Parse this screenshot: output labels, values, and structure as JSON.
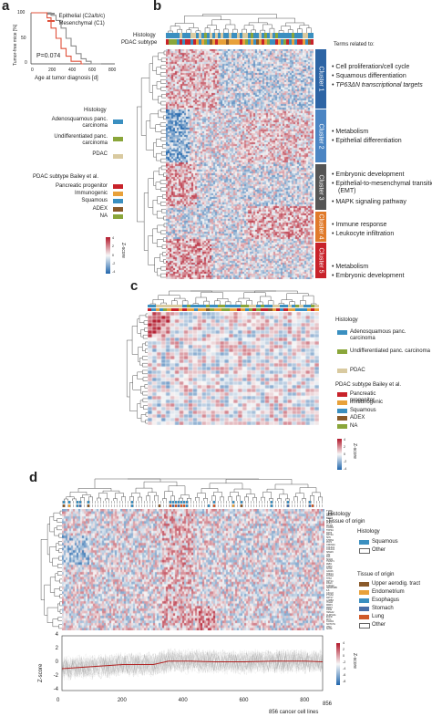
{
  "panel_a": {
    "label": "a",
    "legend": [
      "Epithelial (C2a/b/c)",
      "Mesenchymal (C1)"
    ],
    "pvalue": "P=0.074",
    "ylabel": "Tumor-free mice [%]",
    "xlabel": "Age at tumor diagnosis [d]",
    "yticks": [
      "100",
      "50",
      "0"
    ],
    "xticks": [
      "0",
      "200",
      "400",
      "600",
      "800"
    ]
  },
  "panel_b": {
    "label": "b",
    "track_labels": [
      "Histology",
      "PDAC subtype"
    ],
    "terms_header": "Terms related  to:",
    "clusters": [
      {
        "name": "Cluster 1",
        "color": "#2d64a4",
        "terms": [
          "Cell proliferation/cell cycle",
          "Squamous differentiation",
          "TP63ΔN transcriptional targets"
        ]
      },
      {
        "name": "Cluster 2",
        "color": "#4b85c3",
        "terms": [
          "Metabolism",
          "Epithelial differentiation"
        ]
      },
      {
        "name": "Cluster 3",
        "color": "#555555",
        "terms": [
          "Embryonic development",
          "Epithelial-to-mesenchymal transition (EMT)",
          "MAPK signaling pathway"
        ]
      },
      {
        "name": "Cluster 4",
        "color": "#e07a2a",
        "terms": [
          "Immune response",
          "Leukocyte infiltration"
        ]
      },
      {
        "name": "Cluster 5",
        "color": "#c8222a",
        "terms": [
          "Metabolism",
          "Embryonic development"
        ]
      }
    ],
    "histology_title": "Histology",
    "histology": [
      {
        "label": "Adenosquamous panc. carcinoma",
        "color": "#3a8fc0"
      },
      {
        "label": "Undifferentiated panc. carcinoma",
        "color": "#8aa63a"
      },
      {
        "label": "PDAC",
        "color": "#d9caa0"
      }
    ],
    "subtype_title": "PDAC subtype Bailey et al.",
    "subtypes": [
      {
        "label": "Pancreatic progenitor",
        "color": "#c8222a"
      },
      {
        "label": "Immunogenic",
        "color": "#e8a13a"
      },
      {
        "label": "Squamous",
        "color": "#3a8fc0"
      },
      {
        "label": "ADEX",
        "color": "#8a5a2a"
      },
      {
        "label": "NA",
        "color": "#8aa63a"
      }
    ],
    "zscore_label": "Z-score",
    "zscore_ticks": [
      "4",
      "2",
      "0",
      "-2",
      "-4"
    ]
  },
  "panel_c": {
    "label": "c",
    "histology_title": "Histology",
    "histology": [
      {
        "label": "Adenosquamous panc. carcinoma",
        "color": "#3a8fc0"
      },
      {
        "label": "Undifferentiated panc. carcinoma",
        "color": "#8aa63a"
      },
      {
        "label": "PDAC",
        "color": "#d9caa0"
      }
    ],
    "subtype_title": "PDAC subtype Bailey et al.",
    "subtypes": [
      {
        "label": "Pancreatic progenitor",
        "color": "#c8222a"
      },
      {
        "label": "Immunogenic",
        "color": "#e8a13a"
      },
      {
        "label": "Squamous",
        "color": "#3a8fc0"
      },
      {
        "label": "ADEX",
        "color": "#8a5a2a"
      },
      {
        "label": "NA",
        "color": "#8aa63a"
      }
    ],
    "zscore_label": "Z-score",
    "zscore_ticks": [
      "4",
      "2",
      "0",
      "-2",
      "-4"
    ]
  },
  "panel_d": {
    "label": "d",
    "track_labels": [
      "Histology",
      "Tissue of origin"
    ],
    "histology_title": "Histology",
    "histology": [
      {
        "label": "Squamous",
        "color": "#3a8fc0",
        "outline": false
      },
      {
        "label": "Other",
        "color": "#ffffff",
        "outline": true
      }
    ],
    "tissue_title": "Tissue of origin",
    "tissues": [
      {
        "label": "Upper aerodig. tract",
        "color": "#8a5a2a",
        "outline": false
      },
      {
        "label": "Endometrium",
        "color": "#e8a13a",
        "outline": false
      },
      {
        "label": "Esophagus",
        "color": "#3a8fc0",
        "outline": false
      },
      {
        "label": "Stomach",
        "color": "#4b6fa8",
        "outline": false
      },
      {
        "label": "Lung",
        "color": "#d05a2a",
        "outline": false
      },
      {
        "label": "Other",
        "color": "#ffffff",
        "outline": true
      }
    ],
    "gene_labels": [
      "TYMS",
      "CDC20",
      "MKI67",
      "BIRC5",
      "BUB1",
      "PLK1",
      "MCM2",
      "CCNB1",
      "TOP2A",
      "KRT5",
      "KRT6A",
      "SFN",
      "STMN1",
      "PKP1",
      "CDKN2A",
      "COL3A1",
      "COL1A1",
      "SPARC",
      "VIM",
      "FN1",
      "SNAI2",
      "TWIST1",
      "ZEB1",
      "CDH2",
      "SOX2",
      "GATA6",
      "HNF1A",
      "FOXA2",
      "TP63",
      "KRT14",
      "DSG3",
      "S100A2",
      "SERPINB5",
      "IL6",
      "CXCL8",
      "PTGS2",
      "KRT17",
      "LAMB3",
      "ITGA6",
      "MMP1",
      "MMP7",
      "CD44",
      "HMGA2",
      "ALDH1A1",
      "EGFR",
      "MYC",
      "CCND1",
      "NOTCH1",
      "VIM2",
      "SOX9"
    ],
    "zscore_label": "Z-score",
    "zscore_ticks": [
      "4",
      "2",
      "0",
      "-2",
      "-4",
      "-6",
      "-8"
    ],
    "line_ylabel": "Z-score",
    "line_yticks": [
      "4",
      "2",
      "0",
      "-2",
      "-4"
    ],
    "line_xticks": [
      "0",
      "200",
      "400",
      "600",
      "800",
      "856"
    ],
    "line_xlabel": "856 cancer cell lines"
  },
  "chart_data": [
    {
      "type": "line",
      "panel": "a",
      "xlabel": "Age at tumor diagnosis [d]",
      "ylabel": "Tumor-free mice [%]",
      "xlim": [
        0,
        800
      ],
      "ylim": [
        0,
        100
      ],
      "series": [
        {
          "name": "Epithelial (C2a/b/c)",
          "color": "#8a8a8a",
          "x": [
            0,
            150,
            200,
            250,
            300,
            350,
            400,
            450,
            500,
            550,
            600,
            700
          ],
          "y": [
            100,
            100,
            95,
            85,
            70,
            50,
            35,
            20,
            10,
            5,
            0,
            0
          ]
        },
        {
          "name": "Mesenchymal (C1)",
          "color": "#e0503a",
          "x": [
            0,
            120,
            160,
            200,
            250,
            300,
            350,
            400,
            450,
            500,
            520
          ],
          "y": [
            100,
            100,
            90,
            70,
            50,
            30,
            15,
            5,
            5,
            0,
            0
          ]
        }
      ]
    },
    {
      "type": "line",
      "panel": "d",
      "xlabel": "856 cancer cell lines",
      "ylabel": "Z-score",
      "xlim": [
        0,
        856
      ],
      "ylim": [
        -4,
        4
      ],
      "series": [
        {
          "name": "",
          "color": "#b02020",
          "x": [
            0,
            100,
            200,
            300,
            350,
            420,
            500,
            600,
            700,
            800,
            856
          ],
          "y": [
            -0.8,
            -0.5,
            -0.2,
            -0.2,
            0.3,
            0.3,
            0.2,
            0.2,
            0.3,
            0.3,
            0.2
          ]
        }
      ]
    }
  ]
}
